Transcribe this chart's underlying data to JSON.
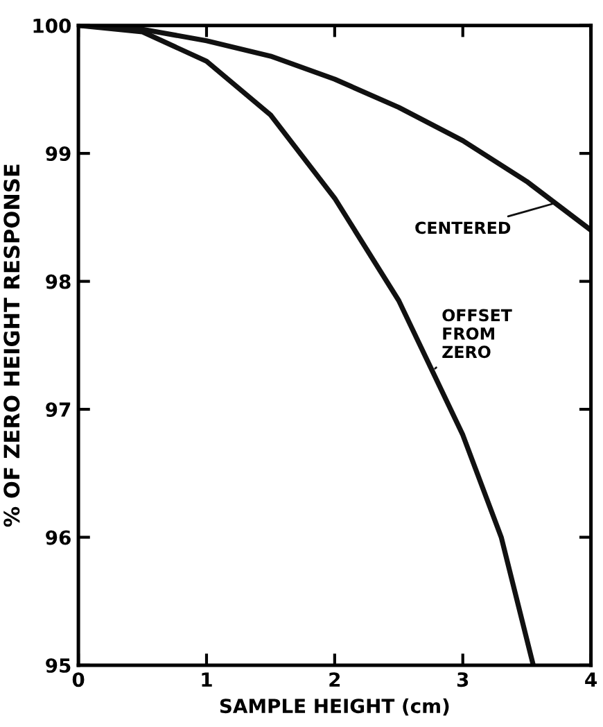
{
  "chart_data": {
    "type": "line",
    "xlabel": "SAMPLE HEIGHT (cm)",
    "ylabel": "% OF ZERO HEIGHT RESPONSE",
    "xlim": [
      0,
      4
    ],
    "ylim": [
      95,
      100
    ],
    "xticks": [
      0,
      1,
      2,
      3,
      4
    ],
    "yticks": [
      95,
      96,
      97,
      98,
      99,
      100
    ],
    "grid": false,
    "legend": false,
    "marker": "none",
    "line_style": "solid",
    "series": [
      {
        "color": "#111111",
        "x": [
          0,
          0.5,
          1,
          1.5,
          2,
          2.5,
          3,
          3.5,
          4
        ],
        "values": [
          100,
          99.97,
          99.88,
          99.76,
          99.58,
          99.36,
          99.1,
          98.78,
          98.4
        ]
      },
      {
        "color": "#111111",
        "x": [
          0,
          0.5,
          1,
          1.5,
          2,
          2.5,
          3,
          3.3,
          3.55
        ],
        "values": [
          100,
          99.95,
          99.72,
          99.3,
          98.65,
          97.85,
          96.8,
          96.0,
          95.0
        ]
      }
    ],
    "annotations": [
      {
        "text": "CENTERED",
        "x": 3.75,
        "y": 98.62
      },
      {
        "text": "OFFSET\nFROM\nZERO",
        "x": 2.76,
        "y": 97.3
      }
    ]
  }
}
